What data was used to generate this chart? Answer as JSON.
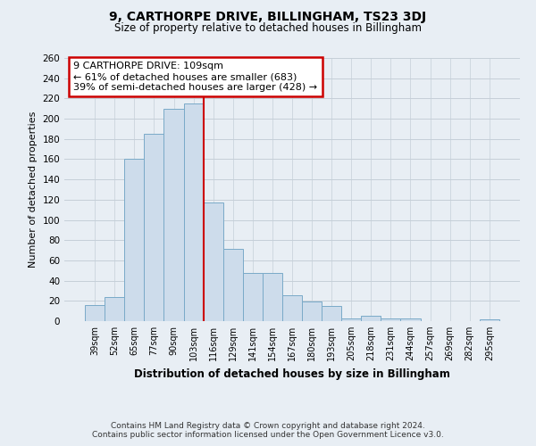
{
  "title": "9, CARTHORPE DRIVE, BILLINGHAM, TS23 3DJ",
  "subtitle": "Size of property relative to detached houses in Billingham",
  "xlabel": "Distribution of detached houses by size in Billingham",
  "ylabel": "Number of detached properties",
  "bar_labels": [
    "39sqm",
    "52sqm",
    "65sqm",
    "77sqm",
    "90sqm",
    "103sqm",
    "116sqm",
    "129sqm",
    "141sqm",
    "154sqm",
    "167sqm",
    "180sqm",
    "193sqm",
    "205sqm",
    "218sqm",
    "231sqm",
    "244sqm",
    "257sqm",
    "269sqm",
    "282sqm",
    "295sqm"
  ],
  "bar_values": [
    16,
    24,
    160,
    185,
    210,
    215,
    117,
    71,
    48,
    48,
    26,
    19,
    15,
    3,
    5,
    3,
    3,
    0,
    0,
    0,
    2
  ],
  "bar_color": "#cddceb",
  "bar_edge_color": "#7aaac8",
  "vline_x": 5.5,
  "vline_color": "#cc0000",
  "annotation_title": "9 CARTHORPE DRIVE: 109sqm",
  "annotation_line1": "← 61% of detached houses are smaller (683)",
  "annotation_line2": "39% of semi-detached houses are larger (428) →",
  "annotation_box_color": "#ffffff",
  "annotation_box_edge": "#cc0000",
  "ylim": [
    0,
    260
  ],
  "yticks": [
    0,
    20,
    40,
    60,
    80,
    100,
    120,
    140,
    160,
    180,
    200,
    220,
    240,
    260
  ],
  "footer_line1": "Contains HM Land Registry data © Crown copyright and database right 2024.",
  "footer_line2": "Contains public sector information licensed under the Open Government Licence v3.0.",
  "bg_color": "#e8eef4",
  "plot_bg_color": "#e8eef4",
  "grid_color": "#c5cfd8"
}
